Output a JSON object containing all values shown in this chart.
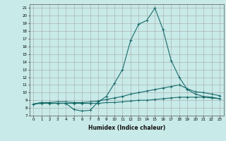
{
  "title": "",
  "xlabel": "Humidex (Indice chaleur)",
  "ylabel": "",
  "bg_color": "#c8eae8",
  "line_color": "#1a6b6b",
  "xlim": [
    -0.5,
    23.5
  ],
  "ylim": [
    7,
    21.5
  ],
  "yticks": [
    7,
    8,
    9,
    10,
    11,
    12,
    13,
    14,
    15,
    16,
    17,
    18,
    19,
    20,
    21
  ],
  "xticks": [
    0,
    1,
    2,
    3,
    4,
    5,
    6,
    7,
    8,
    9,
    10,
    11,
    12,
    13,
    14,
    15,
    16,
    17,
    18,
    19,
    20,
    21,
    22,
    23
  ],
  "series1_x": [
    0,
    1,
    2,
    3,
    4,
    5,
    6,
    7,
    8,
    9,
    10,
    11,
    12,
    13,
    14,
    15,
    16,
    17,
    18,
    19,
    20,
    21,
    22,
    23
  ],
  "series1_y": [
    8.5,
    8.7,
    8.6,
    8.6,
    8.6,
    7.8,
    7.6,
    7.7,
    8.8,
    9.5,
    11.2,
    13.0,
    16.8,
    18.9,
    19.4,
    21.0,
    18.2,
    14.2,
    12.0,
    10.4,
    9.8,
    9.5,
    9.4,
    9.2
  ],
  "series2_x": [
    0,
    1,
    2,
    3,
    4,
    5,
    6,
    7,
    8,
    9,
    10,
    11,
    12,
    13,
    14,
    15,
    16,
    17,
    18,
    19,
    20,
    21,
    22,
    23
  ],
  "series2_y": [
    8.5,
    8.7,
    8.7,
    8.8,
    8.8,
    8.7,
    8.7,
    8.8,
    8.9,
    9.1,
    9.3,
    9.5,
    9.8,
    10.0,
    10.2,
    10.4,
    10.6,
    10.8,
    11.0,
    10.5,
    10.1,
    10.0,
    9.8,
    9.6
  ],
  "series3_x": [
    0,
    1,
    2,
    3,
    4,
    5,
    6,
    7,
    8,
    9,
    10,
    11,
    12,
    13,
    14,
    15,
    16,
    17,
    18,
    19,
    20,
    21,
    22,
    23
  ],
  "series3_y": [
    8.5,
    8.6,
    8.6,
    8.6,
    8.6,
    8.6,
    8.6,
    8.6,
    8.6,
    8.7,
    8.7,
    8.8,
    8.9,
    9.0,
    9.0,
    9.1,
    9.2,
    9.3,
    9.4,
    9.4,
    9.4,
    9.4,
    9.3,
    9.2
  ],
  "tick_fontsize": 4.0,
  "xlabel_fontsize": 5.5
}
